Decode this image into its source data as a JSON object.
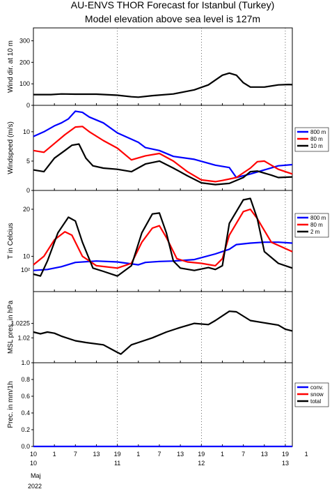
{
  "title_line1": "AU-ENVS THOR Forecast for Istanbul (Turkey)",
  "title_line2": "Model elevation above sea level is  127m",
  "x_axis": {
    "hours": [
      10,
      1,
      7,
      13,
      19,
      1,
      7,
      13,
      19,
      1,
      7,
      13,
      19,
      1
    ],
    "day_labels": [
      {
        "label": "10",
        "hour_offset": 0
      },
      {
        "label": "11",
        "hour_offset": 24
      },
      {
        "label": "12",
        "hour_offset": 48
      },
      {
        "label": "13",
        "hour_offset": 72
      }
    ],
    "month": "Maj",
    "year": "2022"
  },
  "colors": {
    "blue": "#0000ff",
    "red": "#ff0000",
    "black": "#000000",
    "grid": "#000000"
  },
  "chart_data": [
    {
      "type": "line",
      "ylabel": "Wind dir. at 10 m",
      "ylim": [
        0,
        360
      ],
      "yticks": [
        "0",
        "100",
        "200",
        "300"
      ],
      "ytick_values": [
        0,
        100,
        200,
        300
      ],
      "series": [
        {
          "color": "black",
          "points": [
            [
              0,
              50
            ],
            [
              5,
              50
            ],
            [
              8,
              53
            ],
            [
              12,
              52
            ],
            [
              18,
              52
            ],
            [
              24,
              47
            ],
            [
              28,
              40
            ],
            [
              30,
              38
            ],
            [
              34,
              45
            ],
            [
              40,
              53
            ],
            [
              46,
              72
            ],
            [
              50,
              95
            ],
            [
              54,
              140
            ],
            [
              56,
              150
            ],
            [
              58,
              140
            ],
            [
              60,
              105
            ],
            [
              62,
              85
            ],
            [
              66,
              85
            ],
            [
              70,
              95
            ],
            [
              73,
              97
            ],
            [
              74,
              96
            ]
          ]
        }
      ]
    },
    {
      "type": "line",
      "ylabel": "Windspeed (m/s)",
      "ylim": [
        0,
        14.5
      ],
      "yticks": [
        "0",
        "5",
        "10"
      ],
      "ytick_values": [
        0,
        5,
        10
      ],
      "series": [
        {
          "name": "800 m",
          "color": "blue",
          "points": [
            [
              0,
              9.2
            ],
            [
              3,
              10
            ],
            [
              6,
              11
            ],
            [
              8,
              11.5
            ],
            [
              10,
              12.2
            ],
            [
              12,
              13.5
            ],
            [
              14,
              13.3
            ],
            [
              16,
              12.5
            ],
            [
              20,
              11.5
            ],
            [
              24,
              9.8
            ],
            [
              30,
              8.2
            ],
            [
              32,
              7.3
            ],
            [
              36,
              6.8
            ],
            [
              40,
              5.8
            ],
            [
              46,
              5.3
            ],
            [
              52,
              4.3
            ],
            [
              56,
              3.9
            ],
            [
              58,
              2.2
            ],
            [
              62,
              2.8
            ],
            [
              66,
              3.5
            ],
            [
              70,
              4.2
            ],
            [
              74,
              4.4
            ]
          ]
        },
        {
          "name": "80 m",
          "color": "red",
          "points": [
            [
              0,
              6.8
            ],
            [
              3,
              6.5
            ],
            [
              6,
              8
            ],
            [
              9,
              9.5
            ],
            [
              12,
              10.8
            ],
            [
              14,
              10.9
            ],
            [
              16,
              10
            ],
            [
              20,
              8.5
            ],
            [
              24,
              7.2
            ],
            [
              28,
              5.2
            ],
            [
              32,
              5.9
            ],
            [
              36,
              6.3
            ],
            [
              40,
              5
            ],
            [
              44,
              3.2
            ],
            [
              48,
              1.8
            ],
            [
              52,
              1.5
            ],
            [
              54,
              1.7
            ],
            [
              58,
              2.2
            ],
            [
              62,
              3.8
            ],
            [
              64,
              4.9
            ],
            [
              66,
              5.0
            ],
            [
              70,
              3.6
            ],
            [
              74,
              2.8
            ]
          ]
        },
        {
          "name": "10 m",
          "color": "black",
          "points": [
            [
              0,
              3.5
            ],
            [
              3,
              3.2
            ],
            [
              6,
              5.5
            ],
            [
              9,
              6.8
            ],
            [
              11,
              7.7
            ],
            [
              13,
              7.9
            ],
            [
              15,
              5.5
            ],
            [
              17,
              4.2
            ],
            [
              20,
              3.8
            ],
            [
              24,
              3.6
            ],
            [
              28,
              3.2
            ],
            [
              32,
              4.5
            ],
            [
              36,
              5.0
            ],
            [
              40,
              3.8
            ],
            [
              44,
              2.5
            ],
            [
              48,
              1.3
            ],
            [
              52,
              1
            ],
            [
              56,
              1.2
            ],
            [
              60,
              2.2
            ],
            [
              62,
              3.2
            ],
            [
              64,
              3.3
            ],
            [
              68,
              2.6
            ],
            [
              70,
              2.2
            ],
            [
              74,
              2.3
            ]
          ]
        }
      ],
      "legend": [
        "800 m",
        "80 m",
        "10 m"
      ]
    },
    {
      "type": "line",
      "ylabel": "T in Celcius",
      "ylim": [
        2.5,
        24
      ],
      "yticks": [
        "10",
        "20"
      ],
      "ytick_values": [
        10,
        20
      ],
      "extra_label": "10²",
      "series": [
        {
          "name": "800 m",
          "color": "blue",
          "points": [
            [
              0,
              7
            ],
            [
              4,
              7.2
            ],
            [
              8,
              7.8
            ],
            [
              12,
              8.7
            ],
            [
              18,
              9
            ],
            [
              24,
              8.8
            ],
            [
              30,
              8.2
            ],
            [
              32,
              8.7
            ],
            [
              36,
              8.9
            ],
            [
              40,
              9.0
            ],
            [
              46,
              9.3
            ],
            [
              52,
              10.5
            ],
            [
              56,
              11.5
            ],
            [
              58,
              12.5
            ],
            [
              62,
              12.8
            ],
            [
              66,
              13.0
            ],
            [
              70,
              13.0
            ],
            [
              74,
              12.8
            ]
          ]
        },
        {
          "name": "80 m",
          "color": "red",
          "points": [
            [
              0,
              8.2
            ],
            [
              3,
              10
            ],
            [
              6,
              13.5
            ],
            [
              9,
              15.2
            ],
            [
              11,
              14.5
            ],
            [
              14,
              10
            ],
            [
              18,
              8
            ],
            [
              24,
              7.5
            ],
            [
              28,
              8.5
            ],
            [
              31,
              13
            ],
            [
              34,
              16
            ],
            [
              36,
              16.5
            ],
            [
              38,
              14
            ],
            [
              41,
              9.5
            ],
            [
              44,
              8.8
            ],
            [
              48,
              8.5
            ],
            [
              52,
              8
            ],
            [
              54,
              9.5
            ],
            [
              56,
              14.5
            ],
            [
              60,
              19.5
            ],
            [
              62,
              20
            ],
            [
              64,
              18
            ],
            [
              68,
              13
            ],
            [
              74,
              11
            ]
          ]
        },
        {
          "name": "2 m",
          "color": "black",
          "points": [
            [
              0,
              6.2
            ],
            [
              2,
              5.8
            ],
            [
              4,
              9
            ],
            [
              7,
              15
            ],
            [
              10,
              18.3
            ],
            [
              12,
              17.5
            ],
            [
              14,
              13
            ],
            [
              17,
              7.5
            ],
            [
              20,
              6.8
            ],
            [
              24,
              5.8
            ],
            [
              28,
              8
            ],
            [
              31,
              15
            ],
            [
              34,
              19
            ],
            [
              36,
              19.2
            ],
            [
              38,
              15
            ],
            [
              40,
              9
            ],
            [
              42,
              7.5
            ],
            [
              46,
              7
            ],
            [
              50,
              7.6
            ],
            [
              52,
              7.2
            ],
            [
              54,
              8
            ],
            [
              56,
              17
            ],
            [
              60,
              22
            ],
            [
              62,
              22.3
            ],
            [
              64,
              18
            ],
            [
              66,
              11
            ],
            [
              70,
              8.5
            ],
            [
              74,
              7.5
            ]
          ]
        }
      ],
      "legend": [
        "800 m",
        "80 m",
        "2 m"
      ]
    },
    {
      "type": "line",
      "ylabel": "MSL pres. in hPa",
      "ylim": [
        1015.7,
        1028
      ],
      "yticks": [
        "1.02",
        "1.0225"
      ],
      "ytick_values": [
        1020,
        1022.5
      ],
      "series": [
        {
          "color": "black",
          "points": [
            [
              0,
              1021
            ],
            [
              2,
              1020.7
            ],
            [
              4,
              1021
            ],
            [
              6,
              1020.8
            ],
            [
              8,
              1020.3
            ],
            [
              12,
              1019.5
            ],
            [
              15,
              1019.2
            ],
            [
              20,
              1018.8
            ],
            [
              24,
              1017.5
            ],
            [
              25,
              1017.2
            ],
            [
              28,
              1018.8
            ],
            [
              30,
              1019.2
            ],
            [
              34,
              1020
            ],
            [
              38,
              1021
            ],
            [
              42,
              1021.8
            ],
            [
              46,
              1022.5
            ],
            [
              50,
              1022.3
            ],
            [
              52,
              1023
            ],
            [
              56,
              1024.6
            ],
            [
              58,
              1024.5
            ],
            [
              62,
              1023
            ],
            [
              66,
              1022.6
            ],
            [
              70,
              1022.2
            ],
            [
              72,
              1021.5
            ],
            [
              74,
              1021.2
            ]
          ]
        }
      ]
    },
    {
      "type": "line",
      "ylabel": "Prec. in mm/1h",
      "ylim": [
        0,
        1.0
      ],
      "yticks": [
        "0.0",
        "0.2",
        "0.4",
        "0.6",
        "0.8",
        "1.0"
      ],
      "ytick_values": [
        0,
        0.2,
        0.4,
        0.6,
        0.8,
        1.0
      ],
      "series": [
        {
          "name": "conv.",
          "color": "blue",
          "points": [
            [
              0,
              0
            ],
            [
              74,
              0
            ]
          ]
        },
        {
          "name": "snow",
          "color": "red",
          "points": []
        },
        {
          "name": "total",
          "color": "black",
          "points": []
        }
      ],
      "legend": [
        "conv.",
        "snow",
        "total"
      ]
    }
  ]
}
